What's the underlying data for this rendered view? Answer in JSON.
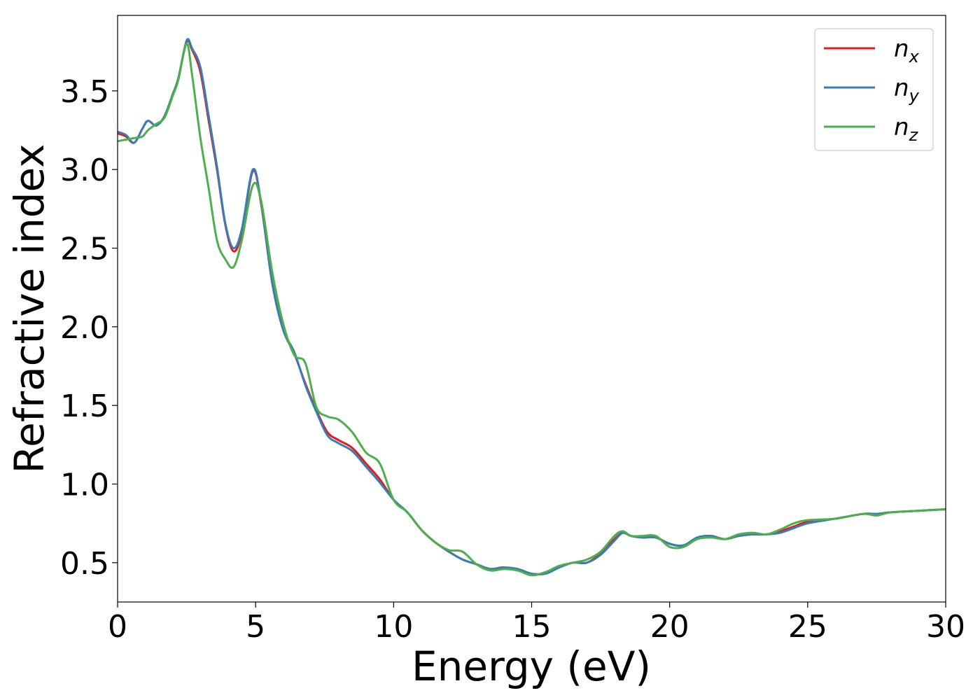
{
  "chart_data": {
    "type": "line",
    "xlabel": "Energy (eV)",
    "ylabel": "Refractive index",
    "xlim": [
      0,
      30
    ],
    "ylim": [
      0.25,
      3.98
    ],
    "xticks": [
      0,
      5,
      10,
      15,
      20,
      25,
      30
    ],
    "xtick_labels": [
      "0",
      "5",
      "10",
      "15",
      "20",
      "25",
      "30"
    ],
    "yticks": [
      0.5,
      1.0,
      1.5,
      2.0,
      2.5,
      3.0,
      3.5
    ],
    "ytick_labels": [
      "0.5",
      "1.0",
      "1.5",
      "2.0",
      "2.5",
      "3.0",
      "3.5"
    ],
    "grid": false,
    "legend_position": "top-right",
    "series": [
      {
        "name": "n_x",
        "legend_base": "n",
        "legend_sub": "x",
        "color": "#e41a1c",
        "x": [
          0,
          0.3,
          0.6,
          0.9,
          1.1,
          1.4,
          1.7,
          2.0,
          2.2,
          2.5,
          2.7,
          3.0,
          3.3,
          3.6,
          3.9,
          4.2,
          4.5,
          4.9,
          5.2,
          5.6,
          6.0,
          6.4,
          6.8,
          7.2,
          7.6,
          8.0,
          8.5,
          9.0,
          9.5,
          10.0,
          10.5,
          11.0,
          11.5,
          12.0,
          12.5,
          13.0,
          13.5,
          14.0,
          14.5,
          15.0,
          15.5,
          16.0,
          16.5,
          17.0,
          17.5,
          18.0,
          18.3,
          18.6,
          19.0,
          19.5,
          20.0,
          20.5,
          21.0,
          21.5,
          22.0,
          22.5,
          23.0,
          23.5,
          24.0,
          24.5,
          25.0,
          26.0,
          27.0,
          27.5,
          28.0,
          29.0,
          30.0
        ],
        "values": [
          3.23,
          3.21,
          3.17,
          3.26,
          3.31,
          3.28,
          3.34,
          3.48,
          3.58,
          3.81,
          3.76,
          3.62,
          3.31,
          3.0,
          2.65,
          2.48,
          2.6,
          2.99,
          2.78,
          2.28,
          1.98,
          1.83,
          1.64,
          1.47,
          1.33,
          1.28,
          1.23,
          1.13,
          1.03,
          0.9,
          0.82,
          0.71,
          0.63,
          0.57,
          0.52,
          0.49,
          0.46,
          0.47,
          0.45,
          0.43,
          0.43,
          0.47,
          0.5,
          0.5,
          0.56,
          0.65,
          0.69,
          0.67,
          0.66,
          0.66,
          0.62,
          0.61,
          0.66,
          0.67,
          0.65,
          0.67,
          0.68,
          0.68,
          0.7,
          0.73,
          0.76,
          0.78,
          0.81,
          0.81,
          0.82,
          0.83,
          0.84
        ]
      },
      {
        "name": "n_y",
        "legend_base": "n",
        "legend_sub": "y",
        "color": "#377eb8",
        "x": [
          0,
          0.3,
          0.6,
          0.9,
          1.1,
          1.4,
          1.7,
          2.0,
          2.2,
          2.5,
          2.7,
          3.0,
          3.3,
          3.6,
          3.9,
          4.2,
          4.5,
          4.9,
          5.2,
          5.6,
          6.0,
          6.4,
          6.8,
          7.2,
          7.6,
          8.0,
          8.5,
          9.0,
          9.5,
          10.0,
          10.5,
          11.0,
          11.5,
          12.0,
          12.5,
          13.0,
          13.5,
          14.0,
          14.5,
          15.0,
          15.5,
          16.0,
          16.5,
          17.0,
          17.5,
          18.0,
          18.3,
          18.6,
          19.0,
          19.5,
          20.0,
          20.5,
          21.0,
          21.5,
          22.0,
          22.5,
          23.0,
          23.5,
          24.0,
          24.5,
          25.0,
          26.0,
          27.0,
          27.5,
          28.0,
          29.0,
          30.0
        ],
        "values": [
          3.24,
          3.22,
          3.17,
          3.26,
          3.31,
          3.28,
          3.34,
          3.48,
          3.58,
          3.82,
          3.77,
          3.65,
          3.34,
          3.02,
          2.66,
          2.5,
          2.62,
          3.0,
          2.79,
          2.28,
          1.98,
          1.84,
          1.63,
          1.46,
          1.31,
          1.26,
          1.21,
          1.11,
          1.01,
          0.9,
          0.82,
          0.71,
          0.63,
          0.57,
          0.52,
          0.49,
          0.46,
          0.47,
          0.46,
          0.43,
          0.43,
          0.47,
          0.5,
          0.5,
          0.55,
          0.64,
          0.69,
          0.67,
          0.66,
          0.66,
          0.62,
          0.61,
          0.66,
          0.67,
          0.65,
          0.67,
          0.68,
          0.68,
          0.69,
          0.72,
          0.75,
          0.78,
          0.81,
          0.81,
          0.82,
          0.83,
          0.84
        ]
      },
      {
        "name": "n_z",
        "legend_base": "n",
        "legend_sub": "z",
        "color": "#4daf4a",
        "x": [
          0,
          0.3,
          0.6,
          0.9,
          1.1,
          1.4,
          1.7,
          2.0,
          2.2,
          2.5,
          2.7,
          3.0,
          3.3,
          3.6,
          3.9,
          4.2,
          4.5,
          4.9,
          5.2,
          5.6,
          6.0,
          6.4,
          6.8,
          7.2,
          7.6,
          8.0,
          8.5,
          9.0,
          9.5,
          10.0,
          10.5,
          11.0,
          11.5,
          12.0,
          12.5,
          13.0,
          13.5,
          14.0,
          14.5,
          15.0,
          15.5,
          16.0,
          16.5,
          17.0,
          17.5,
          18.0,
          18.3,
          18.6,
          19.0,
          19.5,
          20.0,
          20.5,
          21.0,
          21.5,
          22.0,
          22.5,
          23.0,
          23.5,
          24.0,
          24.5,
          25.0,
          26.0,
          27.0,
          27.5,
          28.0,
          29.0,
          30.0
        ],
        "values": [
          3.18,
          3.19,
          3.2,
          3.21,
          3.25,
          3.29,
          3.33,
          3.47,
          3.57,
          3.8,
          3.6,
          3.2,
          2.88,
          2.55,
          2.43,
          2.38,
          2.55,
          2.9,
          2.8,
          2.35,
          2.02,
          1.82,
          1.77,
          1.49,
          1.43,
          1.41,
          1.33,
          1.2,
          1.13,
          0.9,
          0.82,
          0.71,
          0.63,
          0.58,
          0.57,
          0.49,
          0.45,
          0.46,
          0.45,
          0.42,
          0.44,
          0.48,
          0.5,
          0.52,
          0.57,
          0.67,
          0.7,
          0.67,
          0.67,
          0.67,
          0.6,
          0.6,
          0.65,
          0.66,
          0.65,
          0.68,
          0.69,
          0.68,
          0.71,
          0.75,
          0.77,
          0.78,
          0.81,
          0.8,
          0.82,
          0.83,
          0.84
        ]
      }
    ]
  }
}
